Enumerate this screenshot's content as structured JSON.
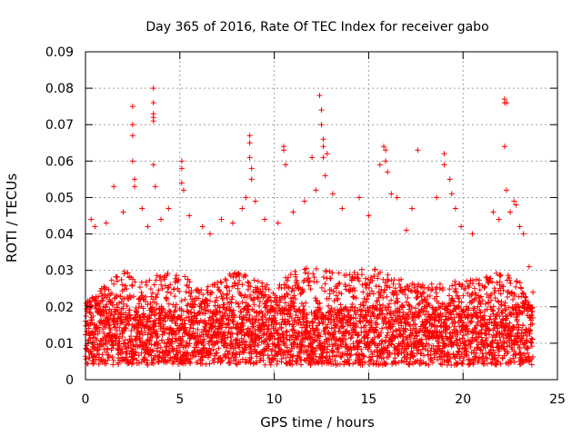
{
  "chart_data": {
    "type": "scatter",
    "title": "Day 365 of 2016, Rate Of TEC Index for receiver gabo",
    "xlabel": "GPS time / hours",
    "ylabel": "ROTI / TECUs",
    "xlim": [
      0,
      25
    ],
    "ylim": [
      0,
      0.09
    ],
    "x_ticks": [
      0,
      5,
      10,
      15,
      20,
      25
    ],
    "x_tick_labels": [
      "0",
      "5",
      "10",
      "15",
      "20",
      "25"
    ],
    "y_ticks": [
      0,
      0.01,
      0.02,
      0.03,
      0.04,
      0.05,
      0.06,
      0.07,
      0.08,
      0.09
    ],
    "y_tick_labels": [
      "0",
      "0.01",
      "0.02",
      "0.03",
      "0.04",
      "0.05",
      "0.06",
      "0.07",
      "0.08",
      "0.09"
    ],
    "grid": true,
    "marker": "+",
    "color": "#ff0000",
    "series": [
      {
        "name": "",
        "points": [
          [
            0.3,
            0.044
          ],
          [
            0.5,
            0.042
          ],
          [
            1.1,
            0.043
          ],
          [
            1.5,
            0.053
          ],
          [
            2.0,
            0.046
          ],
          [
            2.5,
            0.075
          ],
          [
            2.5,
            0.07
          ],
          [
            2.5,
            0.067
          ],
          [
            2.5,
            0.06
          ],
          [
            2.6,
            0.055
          ],
          [
            2.6,
            0.053
          ],
          [
            3.0,
            0.047
          ],
          [
            3.3,
            0.042
          ],
          [
            3.6,
            0.08
          ],
          [
            3.6,
            0.076
          ],
          [
            3.6,
            0.073
          ],
          [
            3.6,
            0.072
          ],
          [
            3.6,
            0.071
          ],
          [
            3.6,
            0.059
          ],
          [
            3.7,
            0.053
          ],
          [
            4.0,
            0.044
          ],
          [
            4.4,
            0.047
          ],
          [
            5.1,
            0.06
          ],
          [
            5.1,
            0.058
          ],
          [
            5.1,
            0.054
          ],
          [
            5.2,
            0.052
          ],
          [
            5.5,
            0.045
          ],
          [
            6.2,
            0.042
          ],
          [
            6.6,
            0.04
          ],
          [
            7.2,
            0.044
          ],
          [
            7.8,
            0.043
          ],
          [
            8.3,
            0.047
          ],
          [
            8.5,
            0.05
          ],
          [
            8.7,
            0.067
          ],
          [
            8.7,
            0.065
          ],
          [
            8.7,
            0.061
          ],
          [
            8.8,
            0.058
          ],
          [
            8.8,
            0.055
          ],
          [
            9.0,
            0.049
          ],
          [
            9.5,
            0.044
          ],
          [
            10.2,
            0.043
          ],
          [
            10.5,
            0.064
          ],
          [
            10.5,
            0.063
          ],
          [
            10.6,
            0.059
          ],
          [
            11.0,
            0.046
          ],
          [
            11.6,
            0.049
          ],
          [
            12.0,
            0.061
          ],
          [
            12.2,
            0.052
          ],
          [
            12.4,
            0.078
          ],
          [
            12.5,
            0.074
          ],
          [
            12.5,
            0.07
          ],
          [
            12.6,
            0.066
          ],
          [
            12.6,
            0.064
          ],
          [
            12.6,
            0.061
          ],
          [
            12.7,
            0.056
          ],
          [
            12.8,
            0.062
          ],
          [
            13.1,
            0.051
          ],
          [
            13.6,
            0.047
          ],
          [
            14.5,
            0.05
          ],
          [
            15.0,
            0.045
          ],
          [
            15.6,
            0.059
          ],
          [
            15.8,
            0.064
          ],
          [
            15.9,
            0.063
          ],
          [
            15.9,
            0.06
          ],
          [
            16.0,
            0.057
          ],
          [
            16.2,
            0.051
          ],
          [
            16.5,
            0.05
          ],
          [
            17.0,
            0.041
          ],
          [
            17.3,
            0.047
          ],
          [
            17.6,
            0.063
          ],
          [
            18.6,
            0.05
          ],
          [
            19.0,
            0.062
          ],
          [
            19.0,
            0.059
          ],
          [
            19.3,
            0.055
          ],
          [
            19.4,
            0.051
          ],
          [
            19.6,
            0.047
          ],
          [
            19.9,
            0.042
          ],
          [
            20.5,
            0.04
          ],
          [
            21.6,
            0.046
          ],
          [
            21.9,
            0.044
          ],
          [
            22.2,
            0.077
          ],
          [
            22.2,
            0.076
          ],
          [
            22.3,
            0.076
          ],
          [
            22.2,
            0.064
          ],
          [
            22.3,
            0.052
          ],
          [
            22.5,
            0.046
          ],
          [
            22.7,
            0.049
          ],
          [
            22.8,
            0.048
          ],
          [
            23.0,
            0.042
          ],
          [
            23.2,
            0.04
          ],
          [
            23.5,
            0.031
          ],
          [
            23.7,
            0.024
          ]
        ],
        "dense_band": {
          "x_range": [
            0,
            23.7
          ],
          "typical_range": [
            0.004,
            0.02
          ],
          "peak_envelope": [
            [
              0,
              0.021
            ],
            [
              1,
              0.026
            ],
            [
              2,
              0.03
            ],
            [
              3,
              0.028
            ],
            [
              4,
              0.029
            ],
            [
              5,
              0.03
            ],
            [
              6,
              0.025
            ],
            [
              7,
              0.027
            ],
            [
              8,
              0.03
            ],
            [
              9,
              0.028
            ],
            [
              10,
              0.025
            ],
            [
              11,
              0.03
            ],
            [
              12,
              0.031
            ],
            [
              13,
              0.03
            ],
            [
              14,
              0.029
            ],
            [
              15,
              0.031
            ],
            [
              16,
              0.029
            ],
            [
              17,
              0.027
            ],
            [
              18,
              0.026
            ],
            [
              19,
              0.028
            ],
            [
              20,
              0.027
            ],
            [
              21,
              0.028
            ],
            [
              22,
              0.03
            ],
            [
              23,
              0.027
            ],
            [
              23.7,
              0.018
            ]
          ]
        }
      }
    ]
  }
}
